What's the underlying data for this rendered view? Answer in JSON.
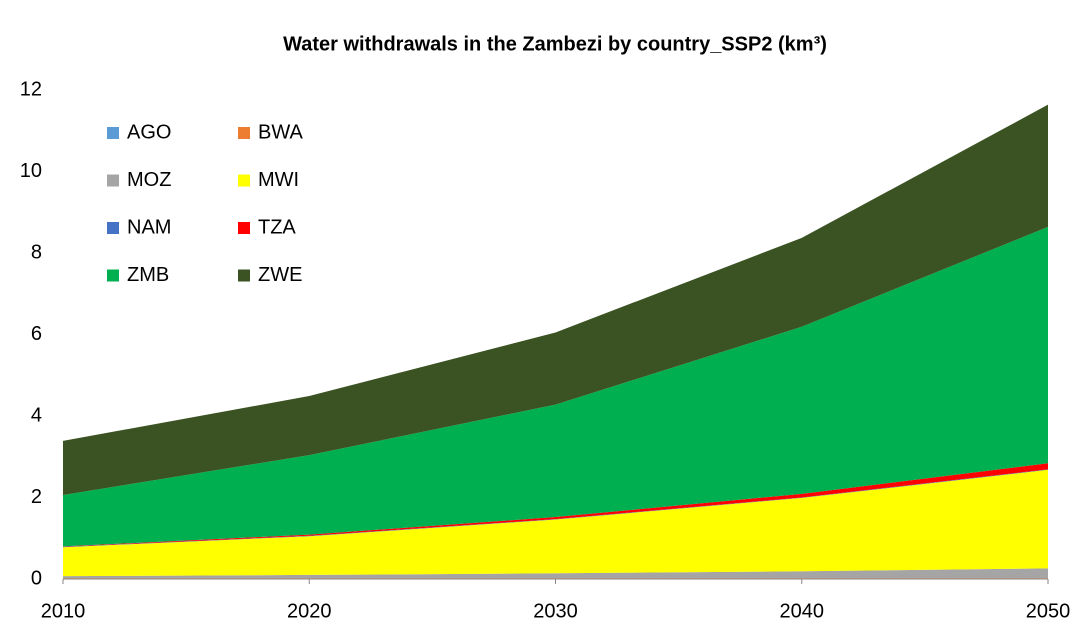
{
  "chart_data": {
    "type": "stacked_area",
    "title": "Water withdrawals in the Zambezi by country_SSP2 (km³)",
    "x": [
      2010,
      2020,
      2030,
      2040,
      2050
    ],
    "xlim": [
      2010,
      2050
    ],
    "xticks": [
      2010,
      2020,
      2030,
      2040,
      2050
    ],
    "ylim": [
      0,
      12
    ],
    "yticks": [
      0,
      2,
      4,
      6,
      8,
      10,
      12
    ],
    "grid": false,
    "legend": "upper left",
    "series": [
      {
        "name": "AGO",
        "color": "#5b9bd5",
        "values": [
          0.01,
          0.01,
          0.01,
          0.01,
          0.01
        ]
      },
      {
        "name": "BWA",
        "color": "#ed7d31",
        "values": [
          0.01,
          0.01,
          0.01,
          0.01,
          0.01
        ]
      },
      {
        "name": "MOZ",
        "color": "#a5a5a5",
        "values": [
          0.05,
          0.08,
          0.12,
          0.17,
          0.24
        ]
      },
      {
        "name": "MWI",
        "color": "#ffff00",
        "values": [
          0.71,
          0.95,
          1.32,
          1.8,
          2.42
        ]
      },
      {
        "name": "NAM",
        "color": "#4472c4",
        "values": [
          0.01,
          0.01,
          0.01,
          0.01,
          0.01
        ]
      },
      {
        "name": "TZA",
        "color": "#ff0000",
        "values": [
          0.01,
          0.03,
          0.05,
          0.09,
          0.15
        ]
      },
      {
        "name": "ZMB",
        "color": "#00b050",
        "values": [
          1.26,
          1.95,
          2.76,
          4.1,
          5.8
        ]
      },
      {
        "name": "ZWE",
        "color": "#3b5323",
        "values": [
          1.33,
          1.45,
          1.77,
          2.18,
          3.0
        ]
      }
    ]
  }
}
